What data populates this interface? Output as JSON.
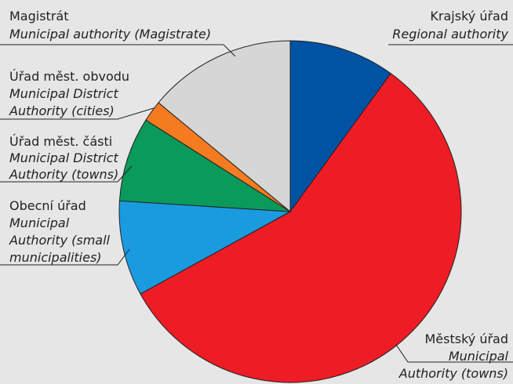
{
  "chart_data": {
    "type": "pie",
    "labels": [
      [
        "Krajský úřad",
        "Regional authority"
      ],
      [
        "Městský úřad",
        "Municipal",
        "Authority (towns)"
      ],
      [
        "Obecní úřad",
        "Municipal",
        "Authority (small",
        "municipalities)"
      ],
      [
        "Úřad měst. části",
        "Municipal District",
        "Authority (towns)"
      ],
      [
        "Úřad měst. obvodu",
        "Municipal District",
        "Authority (cities)"
      ],
      [
        "Magistrát",
        "Municipal authority (Magistrate)"
      ]
    ],
    "values": [
      10,
      57,
      9,
      8,
      2,
      14
    ],
    "colors": [
      "#0052a3",
      "#ee1c25",
      "#1a9be0",
      "#0a9a5c",
      "#f47b20",
      "#d6d6d6"
    ]
  }
}
